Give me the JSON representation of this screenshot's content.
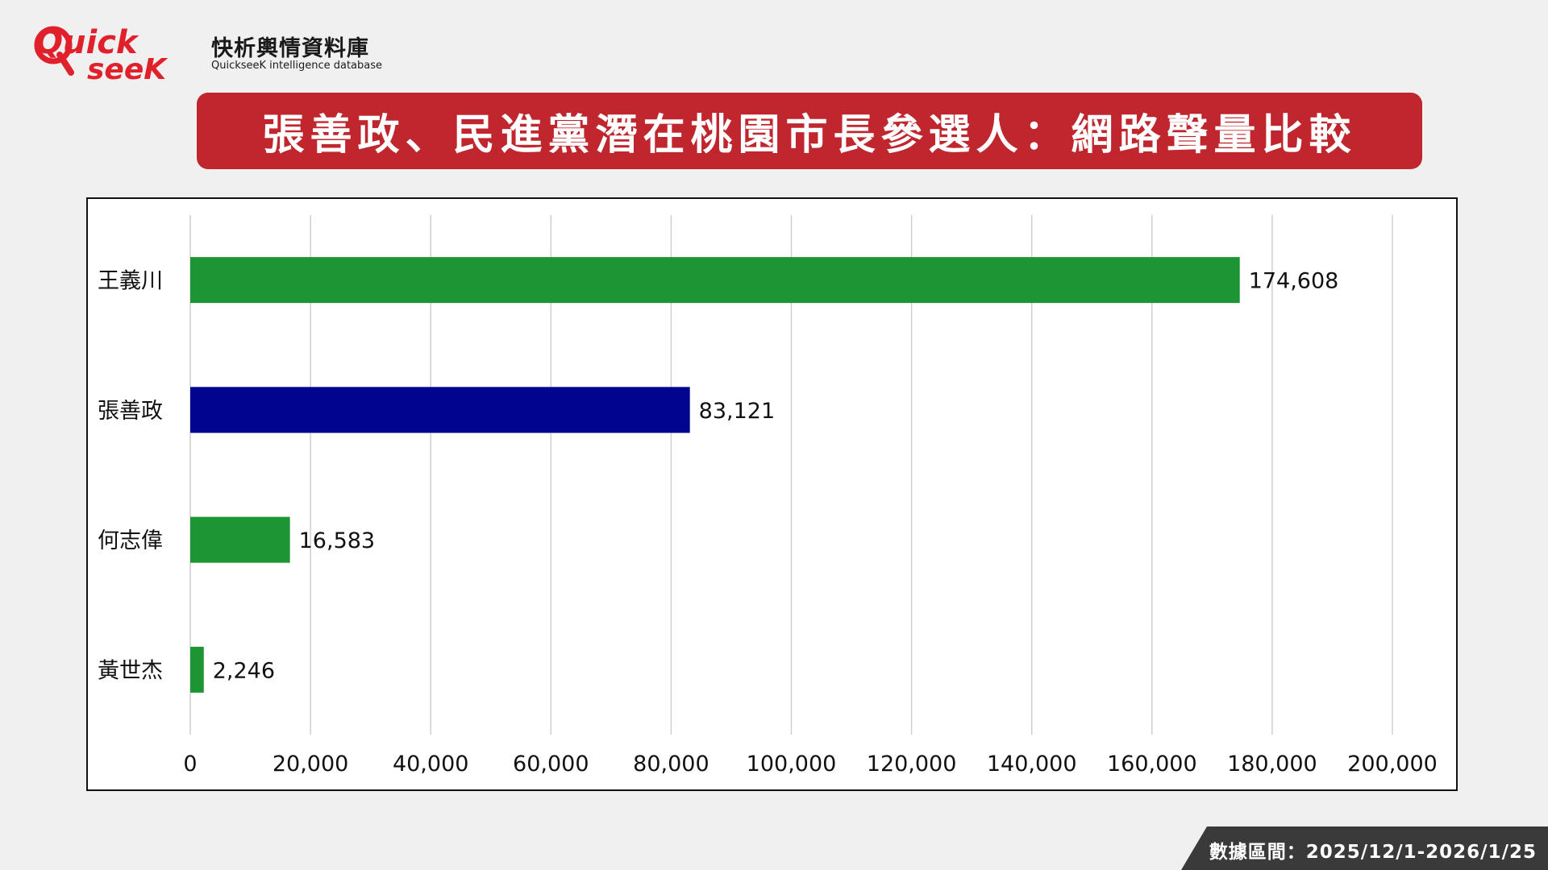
{
  "logo": {
    "mark_line1": "Quick",
    "mark_line2": "seeK",
    "name_cn": "快析輿情資料庫",
    "name_en": "QuickseeK intelligence database",
    "brand_color": "#e0202a"
  },
  "title": "張善政、民進黨潛在桃園市長參選人：網路聲量比較",
  "footer": {
    "label": "數據區間：2025/12/1-2026/1/25"
  },
  "chart_data": {
    "type": "bar",
    "orientation": "horizontal",
    "title": "",
    "xlabel": "",
    "ylabel": "",
    "categories": [
      "王義川",
      "張善政",
      "何志偉",
      "黃世杰"
    ],
    "values": [
      174608,
      83121,
      16583,
      2246
    ],
    "value_labels": [
      "174,608",
      "83,121",
      "16,583",
      "2,246"
    ],
    "bar_colors": [
      "#1e9535",
      "#00048f",
      "#1e9535",
      "#1e9535"
    ],
    "xlim": [
      0,
      200000
    ],
    "xticks": [
      0,
      20000,
      40000,
      60000,
      80000,
      100000,
      120000,
      140000,
      160000,
      180000,
      200000
    ],
    "xtick_labels": [
      "0",
      "20,000",
      "40,000",
      "60,000",
      "80,000",
      "100,000",
      "120,000",
      "140,000",
      "160,000",
      "180,000",
      "200,000"
    ],
    "grid": true,
    "legend": "none"
  }
}
